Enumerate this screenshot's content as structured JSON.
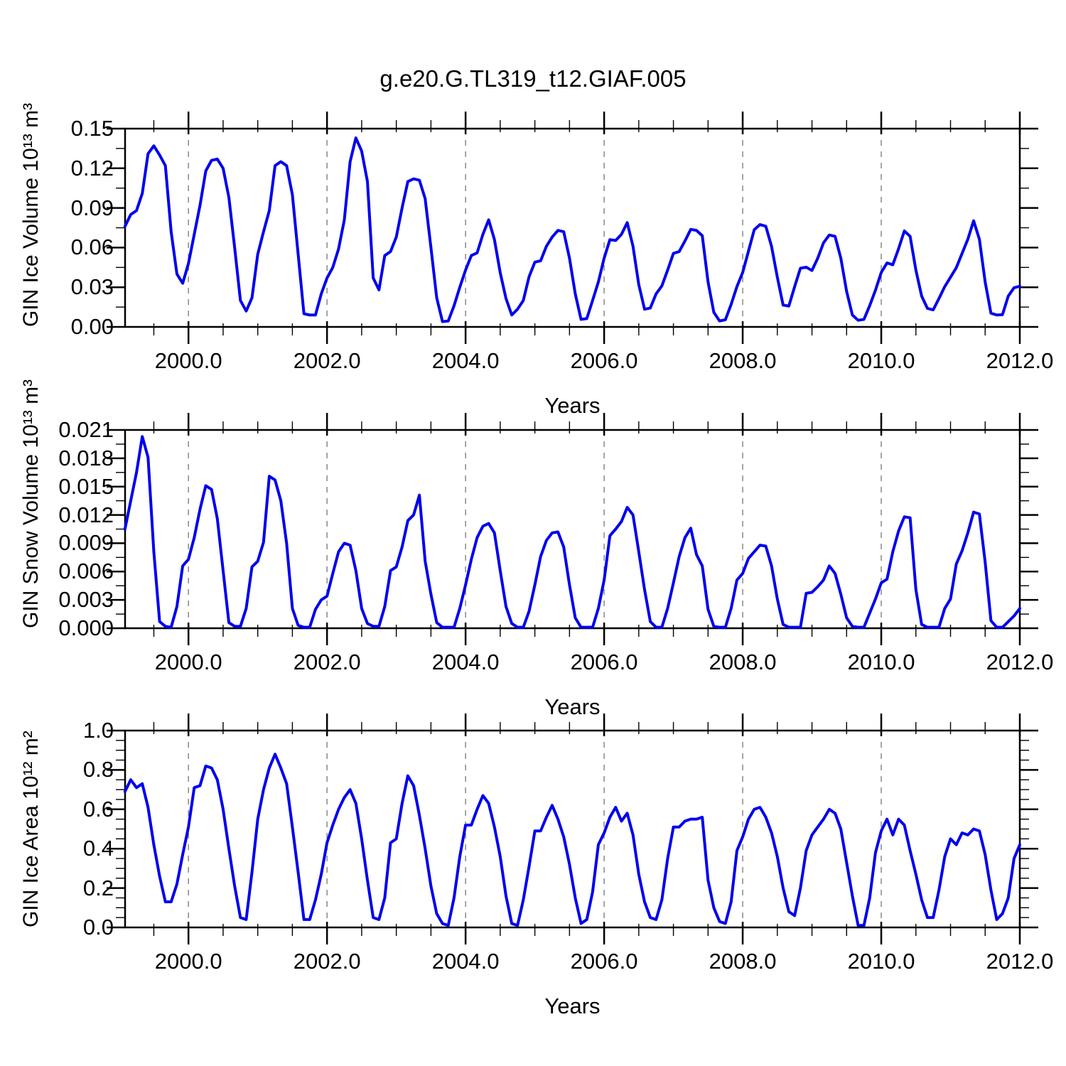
{
  "title": "g.e20.G.TL319_t12.GIAF.005",
  "colors": {
    "line": "#0000EE",
    "grid": "#888888",
    "axis": "#000000",
    "background": "#FFFFFF"
  },
  "chart_data": [
    {
      "type": "line",
      "ylabel": "GIN Ice Volume 10¹³ m³",
      "xlabel": "Years",
      "xlim": [
        1999.085,
        2012.0
      ],
      "ylim": [
        0.0,
        0.15
      ],
      "y_ticks": [
        0.0,
        0.03,
        0.06,
        0.09,
        0.12,
        0.15
      ],
      "y_tick_labels": [
        "0.00",
        "0.03",
        "0.06",
        "0.09",
        "0.12",
        "0.15"
      ],
      "y_minor_step": 0.015,
      "x_major_ticks": [
        2000,
        2002,
        2004,
        2006,
        2008,
        2010,
        2012
      ],
      "x_tick_labels": [
        "2000.0",
        "2002.0",
        "2004.0",
        "2006.0",
        "2008.0",
        "2010.0",
        "2012.0"
      ],
      "x_minor_step": 0.5,
      "gridlines_x": [
        2000,
        2002,
        2004,
        2006,
        2008,
        2010
      ],
      "line_color": "#0000EE",
      "x_start": 1999.0833,
      "x_step_years": 0.0833333,
      "values": [
        0.076,
        0.085,
        0.088,
        0.101,
        0.131,
        0.137,
        0.13,
        0.122,
        0.072,
        0.04,
        0.033,
        0.048,
        0.07,
        0.092,
        0.118,
        0.126,
        0.127,
        0.12,
        0.098,
        0.06,
        0.02,
        0.012,
        0.022,
        0.055,
        0.072,
        0.088,
        0.122,
        0.125,
        0.122,
        0.1,
        0.055,
        0.01,
        0.009,
        0.009,
        0.025,
        0.037,
        0.045,
        0.059,
        0.081,
        0.125,
        0.143,
        0.133,
        0.11,
        0.037,
        0.028,
        0.054,
        0.057,
        0.068,
        0.09,
        0.11,
        0.112,
        0.111,
        0.097,
        0.06,
        0.022,
        0.004,
        0.0045,
        0.016,
        0.03,
        0.043,
        0.054,
        0.056,
        0.07,
        0.081,
        0.066,
        0.041,
        0.0215,
        0.009,
        0.0134,
        0.02,
        0.038,
        0.049,
        0.05,
        0.061,
        0.068,
        0.073,
        0.072,
        0.052,
        0.025,
        0.0057,
        0.0063,
        0.02,
        0.034,
        0.052,
        0.066,
        0.0654,
        0.07,
        0.0789,
        0.061,
        0.032,
        0.0134,
        0.0143,
        0.025,
        0.031,
        0.043,
        0.0556,
        0.057,
        0.065,
        0.0738,
        0.073,
        0.069,
        0.034,
        0.011,
        0.0045,
        0.0054,
        0.017,
        0.0305,
        0.0412,
        0.0573,
        0.0735,
        0.0774,
        0.0762,
        0.0609,
        0.0376,
        0.0165,
        0.0158,
        0.0305,
        0.0444,
        0.0452,
        0.0427,
        0.052,
        0.0636,
        0.0695,
        0.0685,
        0.052,
        0.0269,
        0.009,
        0.005,
        0.0057,
        0.0161,
        0.0278,
        0.0412,
        0.0484,
        0.047,
        0.0591,
        0.0726,
        0.0685,
        0.043,
        0.0233,
        0.014,
        0.0129,
        0.0215,
        0.0305,
        0.0376,
        0.0448,
        0.0556,
        0.0663,
        0.0803,
        0.0663,
        0.034,
        0.0104,
        0.009,
        0.0093,
        0.0233,
        0.0296,
        0.0308
      ]
    },
    {
      "type": "line",
      "ylabel": "GIN Snow Volume 10¹³ m³",
      "xlabel": "Years",
      "xlim": [
        1999.085,
        2012.0
      ],
      "ylim": [
        0.0,
        0.021
      ],
      "y_ticks": [
        0.0,
        0.003,
        0.006,
        0.009,
        0.012,
        0.015,
        0.018,
        0.021
      ],
      "y_tick_labels": [
        "0.000",
        "0.003",
        "0.006",
        "0.009",
        "0.012",
        "0.015",
        "0.018",
        "0.021"
      ],
      "y_minor_step": 0.0015,
      "x_major_ticks": [
        2000,
        2002,
        2004,
        2006,
        2008,
        2010,
        2012
      ],
      "x_tick_labels": [
        "2000.0",
        "2002.0",
        "2004.0",
        "2006.0",
        "2008.0",
        "2010.0",
        "2012.0"
      ],
      "x_minor_step": 0.5,
      "gridlines_x": [
        2000,
        2002,
        2004,
        2006,
        2008,
        2010
      ],
      "line_color": "#0000EE",
      "x_start": 1999.0833,
      "x_step_years": 0.0833333,
      "values": [
        0.0105,
        0.0135,
        0.0165,
        0.0203,
        0.0181,
        0.0081,
        0.0007,
        0.0002,
        0.0001,
        0.0023,
        0.0066,
        0.0073,
        0.0096,
        0.0126,
        0.0151,
        0.0147,
        0.0116,
        0.0061,
        0.0006,
        0.0002,
        0.0002,
        0.0021,
        0.0065,
        0.0071,
        0.0091,
        0.0161,
        0.0157,
        0.0135,
        0.009,
        0.0021,
        0.0003,
        0.0001,
        0.0001,
        0.002,
        0.003,
        0.0034,
        0.0058,
        0.0081,
        0.009,
        0.0088,
        0.0061,
        0.0021,
        0.0005,
        0.0002,
        0.0002,
        0.0023,
        0.0061,
        0.0065,
        0.0086,
        0.0114,
        0.012,
        0.0141,
        0.0071,
        0.0036,
        0.0006,
        0.0001,
        0.0001,
        0.0001,
        0.0021,
        0.0046,
        0.0073,
        0.0096,
        0.0108,
        0.0111,
        0.0101,
        0.0061,
        0.0023,
        0.0005,
        0.0001,
        0.0001,
        0.0018,
        0.0046,
        0.0076,
        0.0093,
        0.0101,
        0.0102,
        0.0086,
        0.0046,
        0.0011,
        0.0001,
        0.0001,
        0.0001,
        0.0021,
        0.0051,
        0.0098,
        0.0105,
        0.0113,
        0.0128,
        0.012,
        0.0081,
        0.0041,
        0.0007,
        0.0001,
        0.0001,
        0.0021,
        0.0048,
        0.0076,
        0.0096,
        0.0106,
        0.0078,
        0.0066,
        0.002,
        0.0002,
        0.0001,
        0.0001,
        0.0021,
        0.0051,
        0.0058,
        0.0074,
        0.0081,
        0.0088,
        0.0087,
        0.0066,
        0.0031,
        0.0004,
        0.0001,
        0.0001,
        0.0001,
        0.0037,
        0.0038,
        0.0044,
        0.0051,
        0.0066,
        0.0058,
        0.0036,
        0.0011,
        0.0002,
        0.0001,
        0.0001,
        0.0016,
        0.0031,
        0.0048,
        0.0052,
        0.0081,
        0.0103,
        0.0118,
        0.0117,
        0.0041,
        0.0004,
        0.0001,
        0.0001,
        0.0001,
        0.0021,
        0.0031,
        0.0068,
        0.0082,
        0.0101,
        0.0123,
        0.0121,
        0.007,
        0.0008,
        0.0001,
        0.0001,
        0.0007,
        0.0013,
        0.0021
      ]
    },
    {
      "type": "line",
      "ylabel": "GIN Ice Area 10¹² m²",
      "xlabel": "Years",
      "xlim": [
        1999.085,
        2012.0
      ],
      "ylim": [
        0.0,
        1.0
      ],
      "y_ticks": [
        0.0,
        0.2,
        0.4,
        0.6,
        0.8,
        1.0
      ],
      "y_tick_labels": [
        "0.0",
        "0.2",
        "0.4",
        "0.6",
        "0.8",
        "1.0"
      ],
      "y_minor_step": 0.05,
      "x_major_ticks": [
        2000,
        2002,
        2004,
        2006,
        2008,
        2010,
        2012
      ],
      "x_tick_labels": [
        "2000.0",
        "2002.0",
        "2004.0",
        "2006.0",
        "2008.0",
        "2010.0",
        "2012.0"
      ],
      "x_minor_step": 0.5,
      "gridlines_x": [
        2000,
        2002,
        2004,
        2006,
        2008,
        2010
      ],
      "line_color": "#0000EE",
      "x_start": 1999.0833,
      "x_step_years": 0.0833333,
      "values": [
        0.69,
        0.75,
        0.71,
        0.73,
        0.61,
        0.42,
        0.26,
        0.13,
        0.13,
        0.22,
        0.37,
        0.51,
        0.71,
        0.72,
        0.82,
        0.81,
        0.75,
        0.6,
        0.4,
        0.21,
        0.05,
        0.04,
        0.28,
        0.55,
        0.7,
        0.81,
        0.88,
        0.81,
        0.73,
        0.51,
        0.28,
        0.04,
        0.04,
        0.14,
        0.27,
        0.43,
        0.52,
        0.6,
        0.66,
        0.7,
        0.63,
        0.45,
        0.24,
        0.05,
        0.04,
        0.15,
        0.43,
        0.45,
        0.63,
        0.77,
        0.72,
        0.57,
        0.4,
        0.21,
        0.07,
        0.02,
        0.01,
        0.15,
        0.36,
        0.52,
        0.52,
        0.6,
        0.67,
        0.63,
        0.51,
        0.36,
        0.16,
        0.02,
        0.01,
        0.14,
        0.31,
        0.49,
        0.49,
        0.56,
        0.62,
        0.55,
        0.46,
        0.32,
        0.15,
        0.02,
        0.04,
        0.18,
        0.42,
        0.48,
        0.56,
        0.61,
        0.54,
        0.58,
        0.47,
        0.27,
        0.13,
        0.05,
        0.04,
        0.14,
        0.35,
        0.51,
        0.51,
        0.54,
        0.55,
        0.55,
        0.56,
        0.24,
        0.1,
        0.03,
        0.02,
        0.13,
        0.39,
        0.46,
        0.55,
        0.6,
        0.61,
        0.56,
        0.48,
        0.36,
        0.2,
        0.08,
        0.06,
        0.2,
        0.39,
        0.47,
        0.51,
        0.55,
        0.6,
        0.58,
        0.5,
        0.33,
        0.16,
        0.01,
        0.01,
        0.15,
        0.38,
        0.49,
        0.55,
        0.47,
        0.55,
        0.52,
        0.39,
        0.27,
        0.14,
        0.05,
        0.05,
        0.19,
        0.36,
        0.45,
        0.42,
        0.48,
        0.47,
        0.5,
        0.49,
        0.37,
        0.19,
        0.04,
        0.07,
        0.15,
        0.35,
        0.42
      ]
    }
  ]
}
